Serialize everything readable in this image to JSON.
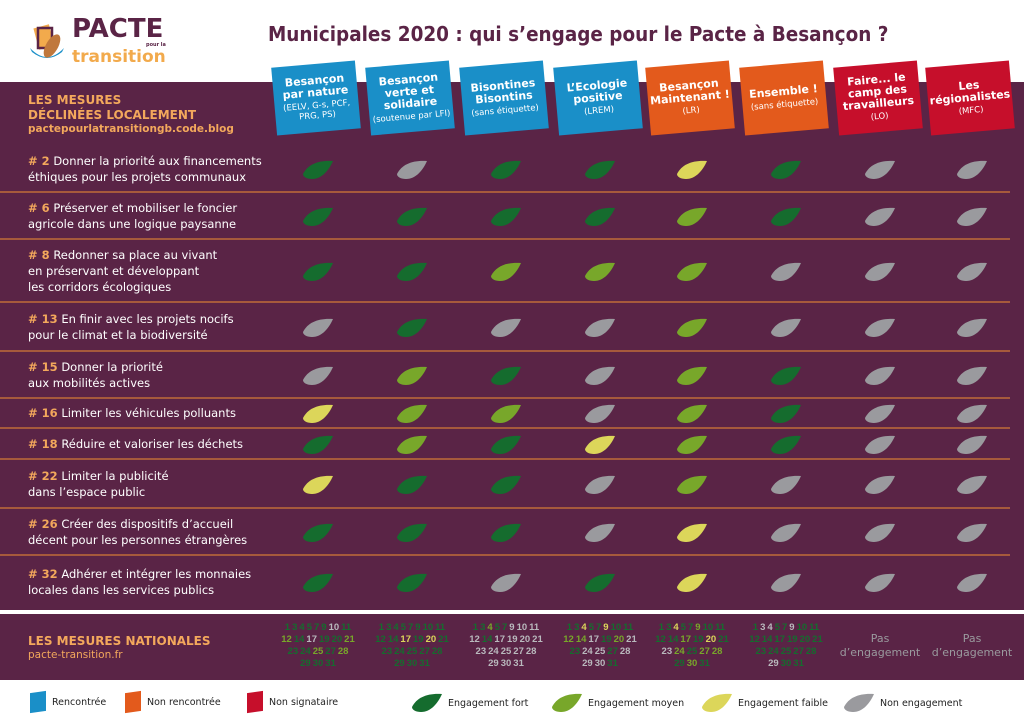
{
  "logo": {
    "pacte": "PACTE",
    "pour": "pour la",
    "transition": "transition"
  },
  "title": "Municipales 2020 : qui s’engage pour le Pacte à Besançon ?",
  "colors": {
    "background": "#5a2446",
    "heading": "#f3a85c",
    "rencontree": "#1a8fc8",
    "non_rencontree": "#e35a1c",
    "non_signataire": "#c60f2b",
    "fort": "#156c2e",
    "moyen": "#78a72a",
    "faible": "#dcd65a",
    "none": "#9a9a9e",
    "divider": "#a65a3c"
  },
  "local_section": {
    "title_line1": "LES MESURES",
    "title_line2": "DÉCLINÉES LOCALEMENT",
    "link": "pactepourlatransitiongb.code.blog"
  },
  "lists": [
    {
      "name": "Besançon par nature",
      "party": "(EELV, G-s, PCF, PRG, PS)",
      "status": "rencontree"
    },
    {
      "name": "Besançon verte et solidaire",
      "party": "(soutenue par LFI)",
      "status": "rencontree"
    },
    {
      "name": "Bisontines Bisontins",
      "party": "(sans étiquette)",
      "status": "rencontree"
    },
    {
      "name": "L’Ecologie positive",
      "party": "(LREM)",
      "status": "rencontree"
    },
    {
      "name": "Besançon Maintenant !",
      "party": "(LR)",
      "status": "non_rencontree"
    },
    {
      "name": "Ensemble !",
      "party": "(sans étiquette)",
      "status": "non_rencontree"
    },
    {
      "name": "Faire... le camp des travailleurs",
      "party": "(LO)",
      "status": "non_signataire"
    },
    {
      "name": "Les régionalistes",
      "party": "(MFC)",
      "status": "non_signataire"
    }
  ],
  "measures": [
    {
      "num": "# 2",
      "text": [
        "Donner la priorité aux financements",
        "éthiques pour les projets communaux"
      ],
      "levels": [
        "fort",
        "none",
        "fort",
        "fort",
        "faible",
        "fort",
        "none",
        "none"
      ]
    },
    {
      "num": "# 6",
      "text": [
        "Préserver et mobiliser le foncier",
        "agricole dans une logique paysanne"
      ],
      "levels": [
        "fort",
        "fort",
        "fort",
        "fort",
        "moyen",
        "fort",
        "none",
        "none"
      ]
    },
    {
      "num": "# 8",
      "text": [
        "Redonner sa place au vivant",
        "en préservant et développant",
        "les corridors écologiques"
      ],
      "levels": [
        "fort",
        "fort",
        "moyen",
        "moyen",
        "moyen",
        "none",
        "none",
        "none"
      ]
    },
    {
      "num": "# 13",
      "text": [
        "En finir avec les projets nocifs",
        "pour le climat et la biodiversité"
      ],
      "levels": [
        "none",
        "fort",
        "none",
        "none",
        "moyen",
        "none",
        "none",
        "none"
      ]
    },
    {
      "num": "# 15",
      "text": [
        "Donner la priorité",
        "aux mobilités actives"
      ],
      "levels": [
        "none",
        "moyen",
        "fort",
        "none",
        "moyen",
        "fort",
        "none",
        "none"
      ]
    },
    {
      "num": "# 16",
      "text": [
        "Limiter les véhicules polluants"
      ],
      "levels": [
        "faible",
        "moyen",
        "moyen",
        "none",
        "moyen",
        "fort",
        "none",
        "none"
      ]
    },
    {
      "num": "# 18",
      "text": [
        "Réduire et valoriser les déchets"
      ],
      "levels": [
        "fort",
        "moyen",
        "fort",
        "faible",
        "moyen",
        "fort",
        "none",
        "none"
      ]
    },
    {
      "num": "# 22",
      "text": [
        "Limiter la publicité",
        "dans l’espace public"
      ],
      "levels": [
        "faible",
        "fort",
        "fort",
        "none",
        "moyen",
        "none",
        "none",
        "none"
      ]
    },
    {
      "num": "# 26",
      "text": [
        "Créer des dispositifs d’accueil",
        "décent pour les personnes étrangères"
      ],
      "levels": [
        "fort",
        "fort",
        "fort",
        "none",
        "faible",
        "none",
        "none",
        "none"
      ]
    },
    {
      "num": "# 32",
      "text": [
        "Adhérer et intégrer les monnaies",
        "locales dans les services publics"
      ],
      "levels": [
        "fort",
        "fort",
        "none",
        "fort",
        "faible",
        "none",
        "none",
        "none"
      ]
    }
  ],
  "national_section": {
    "title": "LES MESURES NATIONALES",
    "link": "pacte-transition.fr"
  },
  "national": [
    {
      "rows": [
        [
          "1:f",
          "3:f",
          "4:f",
          "5:f",
          "7:f",
          "9:f",
          "10:n",
          "11:f"
        ],
        [
          "12:m",
          "14:f",
          "17:n",
          "19:f",
          "20:f",
          "21:m"
        ],
        [
          "23:f",
          "24:f",
          "25:m",
          "27:f",
          "28:m"
        ],
        [
          "29:f",
          "30:f",
          "31:f"
        ]
      ]
    },
    {
      "rows": [
        [
          "1:f",
          "3:f",
          "4:f",
          "5:f",
          "7:f",
          "9:f",
          "10:f",
          "11:f"
        ],
        [
          "12:f",
          "14:f",
          "17:w",
          "19:f",
          "20:w",
          "21:f"
        ],
        [
          "23:f",
          "24:f",
          "25:f",
          "27:f",
          "28:f"
        ],
        [
          "29:f",
          "30:f",
          "31:f"
        ]
      ]
    },
    {
      "rows": [
        [
          "1:f",
          "3:f",
          "4:m",
          "5:f",
          "7:f",
          "9:n",
          "10:n",
          "11:n"
        ],
        [
          "12:n",
          "14:f",
          "17:n",
          "19:n",
          "20:n",
          "21:n"
        ],
        [
          "23:n",
          "24:n",
          "25:n",
          "27:n",
          "28:n"
        ],
        [
          "29:n",
          "30:n",
          "31:n"
        ]
      ]
    },
    {
      "rows": [
        [
          "1:f",
          "3:f",
          "4:w",
          "5:f",
          "7:f",
          "9:w",
          "10:f",
          "11:f"
        ],
        [
          "12:m",
          "14:m",
          "17:n",
          "19:f",
          "20:m",
          "21:n"
        ],
        [
          "23:f",
          "24:n",
          "25:n",
          "27:f",
          "28:n"
        ],
        [
          "29:n",
          "30:n",
          "31:f"
        ]
      ]
    },
    {
      "rows": [
        [
          "1:f",
          "3:f",
          "4:w",
          "5:f",
          "7:f",
          "9:m",
          "10:f",
          "11:f"
        ],
        [
          "12:f",
          "14:f",
          "17:m",
          "19:f",
          "20:w",
          "21:f"
        ],
        [
          "23:n",
          "24:m",
          "25:f",
          "27:m",
          "28:m"
        ],
        [
          "29:f",
          "30:m",
          "31:f"
        ]
      ]
    },
    {
      "rows": [
        [
          "1:f",
          "3:n",
          "4:n",
          "5:f",
          "7:f",
          "9:n",
          "10:f",
          "11:f"
        ],
        [
          "12:f",
          "14:f",
          "17:f",
          "19:f",
          "20:f",
          "21:f"
        ],
        [
          "23:f",
          "24:f",
          "25:f",
          "27:f",
          "28:f"
        ],
        [
          "29:n",
          "30:f",
          "31:f"
        ]
      ]
    },
    {
      "text": [
        "Pas",
        "d’engagement"
      ]
    },
    {
      "text": [
        "Pas",
        "d’engagement"
      ]
    }
  ],
  "legend": {
    "status": [
      {
        "label": "Rencontrée",
        "key": "rencontree"
      },
      {
        "label": "Non rencontrée",
        "key": "non_rencontree"
      },
      {
        "label": "Non signataire",
        "key": "non_signataire"
      }
    ],
    "engagement": [
      {
        "label": "Engagement fort",
        "key": "fort"
      },
      {
        "label": "Engagement moyen",
        "key": "moyen"
      },
      {
        "label": "Engagement faible",
        "key": "faible"
      },
      {
        "label": "Non engagement",
        "key": "none"
      }
    ]
  }
}
